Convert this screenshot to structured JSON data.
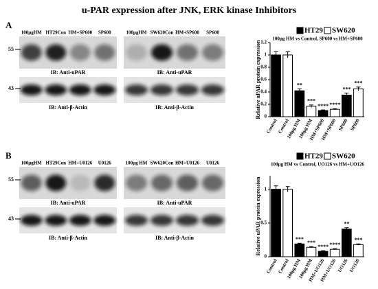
{
  "title": "u-PAR expression after JNK, ERK kinase Inhibitors",
  "panels": [
    {
      "label": "A",
      "blots": [
        {
          "lanes": [
            "100μgHM",
            "HT29Con",
            "HM+SP600",
            "SP600"
          ],
          "markers": [
            "55",
            "43"
          ],
          "captions": [
            "IB: Anti-uPAR",
            "IB: Anti-β-Actin"
          ]
        },
        {
          "lanes": [
            "100μgHM",
            "SW620Con",
            "HM+SP600",
            "SP600"
          ],
          "captions": [
            "IB: Anti-uPAR",
            "IB: Anti-β-Actin"
          ]
        }
      ]
    },
    {
      "label": "B",
      "blots": [
        {
          "lanes": [
            "100μgHM",
            "HT29Con",
            "HM+U0126",
            "U0126"
          ],
          "markers": [
            "55",
            "43"
          ],
          "captions": [
            "IB: Anti-uPAR",
            "IB: Anti-β-Actin"
          ]
        },
        {
          "lanes": [
            "100μg HM",
            "SW620Con",
            "HM+U0126",
            "U0126"
          ],
          "captions": [
            "IB: Anti-uPAR",
            "IB: Anti-β-Actin"
          ]
        }
      ]
    }
  ],
  "chart_data": [
    {
      "type": "bar",
      "subtitle": "100μg HM vs Control,  SP600 vs HM+SP600",
      "y_label": "Relative uPAR protein expression",
      "legend": [
        {
          "name": "HT29",
          "color": "#000000"
        },
        {
          "name": "SW620",
          "color": "#ffffff"
        }
      ],
      "categories": [
        "Control",
        "Control",
        "100μg HM",
        "100μg HM",
        "HM+SP600",
        "HM+SP600",
        "SP600",
        "SP600"
      ],
      "values": [
        1.0,
        1.0,
        0.42,
        0.17,
        0.1,
        0.12,
        0.35,
        0.45
      ],
      "errors": [
        0.05,
        0.05,
        0.03,
        0.02,
        0.01,
        0.01,
        0.03,
        0.03
      ],
      "annotations": [
        null,
        null,
        "**",
        "***",
        "****",
        "****",
        "***",
        "***"
      ],
      "colors": [
        "#000000",
        "#ffffff",
        "#000000",
        "#ffffff",
        "#000000",
        "#ffffff",
        "#000000",
        "#ffffff"
      ],
      "ylim": [
        0,
        1.2
      ],
      "yticks": [
        0,
        0.2,
        0.4,
        0.6,
        0.8,
        1,
        1.2
      ]
    },
    {
      "type": "bar",
      "subtitle": "100μg HM vs Control,  UO126 vs HM+UO126",
      "y_label": "Relative uPAR protein expression",
      "legend": [
        {
          "name": "HT29",
          "color": "#000000"
        },
        {
          "name": "SW620",
          "color": "#ffffff"
        }
      ],
      "categories": [
        "Control",
        "Control",
        "100μg HM",
        "100μg HM",
        "HM+UO126",
        "HM+UO126",
        "UO126",
        "UO126"
      ],
      "values": [
        1.0,
        1.0,
        0.19,
        0.14,
        0.08,
        0.11,
        0.41,
        0.18
      ],
      "errors": [
        0.05,
        0.04,
        0.01,
        0.01,
        0.01,
        0.01,
        0.02,
        0.01
      ],
      "annotations": [
        null,
        null,
        "***",
        "***",
        "****",
        "****",
        "**",
        "***"
      ],
      "colors": [
        "#000000",
        "#ffffff",
        "#000000",
        "#ffffff",
        "#000000",
        "#ffffff",
        "#000000",
        "#ffffff"
      ],
      "ylim": [
        0,
        1.2
      ],
      "yticks": [
        0,
        0.5,
        1
      ]
    }
  ]
}
